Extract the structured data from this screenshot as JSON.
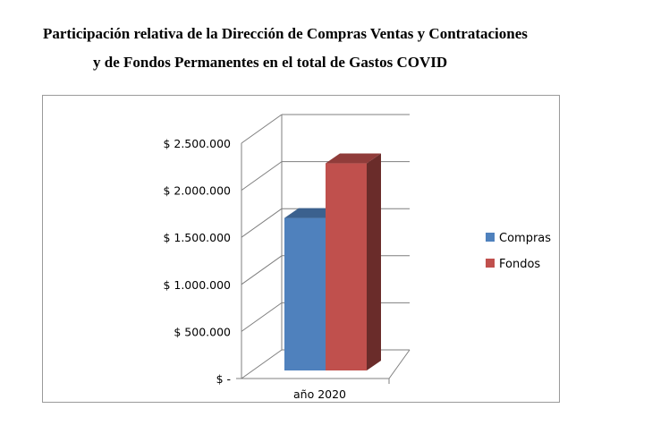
{
  "title": {
    "line1": "Participación relativa de la Dirección de Compras Ventas y Contrataciones",
    "line2": "y de Fondos Permanentes en el total de Gastos COVID"
  },
  "chart_data": {
    "type": "bar",
    "title": "Participación relativa de la Dirección de Compras Ventas y Contrataciones y de Fondos Permanentes en el total de Gastos COVID",
    "categories": [
      "año 2020"
    ],
    "series": [
      {
        "name": "Compras",
        "values": [
          1620000
        ],
        "color": "#4f81bd"
      },
      {
        "name": "Fondos",
        "values": [
          2200000
        ],
        "color": "#c0504d"
      }
    ],
    "ylim": [
      0,
      2500000
    ],
    "yticks": [
      0,
      500000,
      1000000,
      1500000,
      2000000,
      2500000
    ],
    "ytick_labels": [
      "$ -",
      "$ 500.000",
      "$ 1.000.000",
      "$ 1.500.000",
      "$ 2.000.000",
      "$ 2.500.000"
    ],
    "grid": true,
    "legend_position": "right",
    "style": "3d-clustered-column"
  }
}
